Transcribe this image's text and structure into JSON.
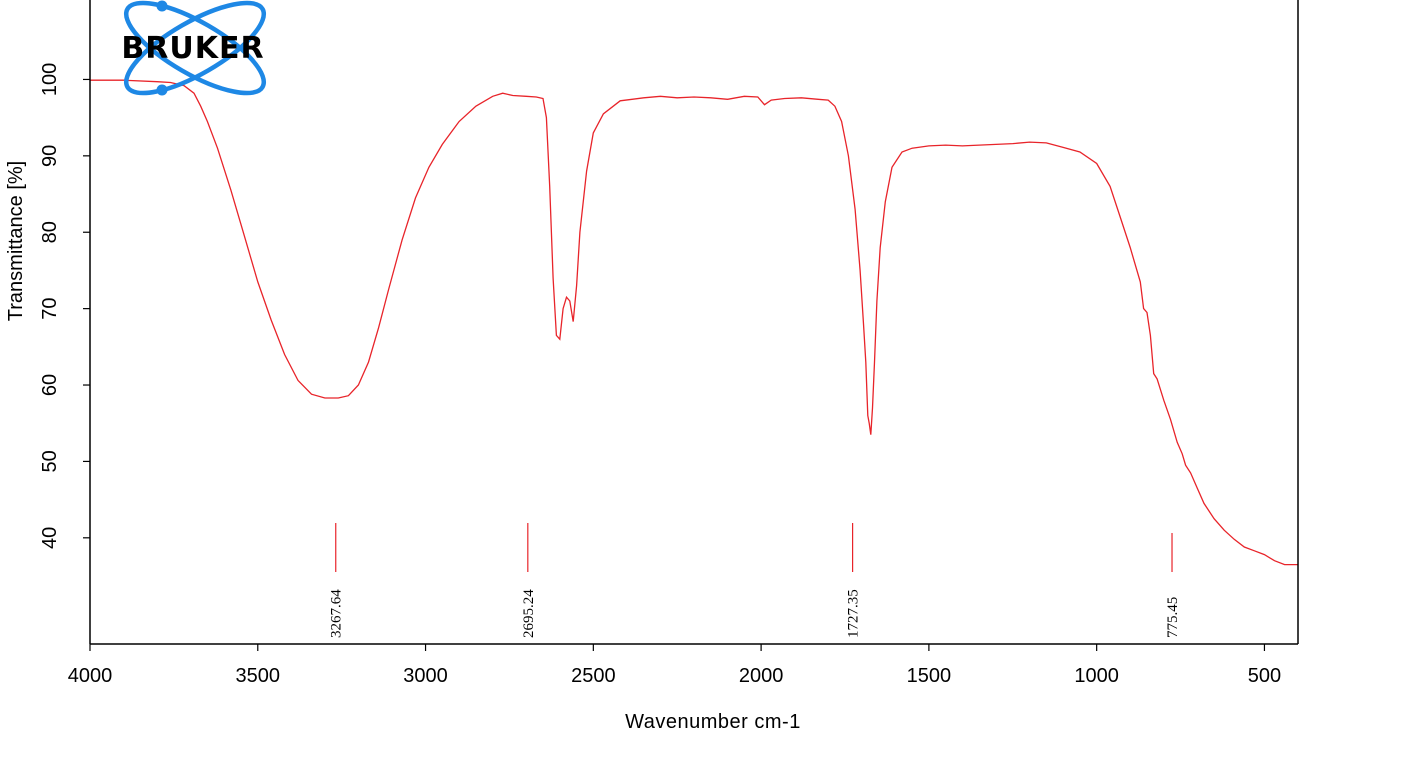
{
  "logo": {
    "text": "BRUKER",
    "color": "#1e88e5"
  },
  "colors": {
    "spectrum": "#e8242a",
    "axis": "#000000",
    "peak_marker": "#e8242a"
  },
  "chart_data": {
    "type": "line",
    "title": "",
    "xlabel": "Wavenumber cm-1",
    "ylabel": "Transmittance [%]",
    "xlim": [
      4000,
      400
    ],
    "ylim": [
      26.1,
      110.4
    ],
    "x_reversed": true,
    "x_ticks": [
      4000,
      3500,
      3000,
      2500,
      2000,
      1500,
      1000,
      500
    ],
    "y_ticks": [
      40,
      50,
      60,
      70,
      80,
      90,
      100
    ],
    "grid": false,
    "legend": "none",
    "series": [
      {
        "points": [
          [
            4000,
            99.9
          ],
          [
            3900,
            99.9
          ],
          [
            3800,
            99.7
          ],
          [
            3760,
            99.6
          ],
          [
            3720,
            99.2
          ],
          [
            3690,
            98.2
          ],
          [
            3670,
            96.5
          ],
          [
            3650,
            94.5
          ],
          [
            3620,
            91.0
          ],
          [
            3580,
            85.5
          ],
          [
            3540,
            79.5
          ],
          [
            3500,
            73.5
          ],
          [
            3460,
            68.5
          ],
          [
            3420,
            64.0
          ],
          [
            3380,
            60.6
          ],
          [
            3340,
            58.8
          ],
          [
            3300,
            58.3
          ],
          [
            3260,
            58.3
          ],
          [
            3230,
            58.6
          ],
          [
            3200,
            60.0
          ],
          [
            3170,
            63.0
          ],
          [
            3140,
            67.5
          ],
          [
            3110,
            72.5
          ],
          [
            3070,
            79.0
          ],
          [
            3030,
            84.5
          ],
          [
            2990,
            88.5
          ],
          [
            2950,
            91.5
          ],
          [
            2900,
            94.5
          ],
          [
            2850,
            96.5
          ],
          [
            2800,
            97.8
          ],
          [
            2770,
            98.2
          ],
          [
            2740,
            97.9
          ],
          [
            2700,
            97.8
          ],
          [
            2670,
            97.7
          ],
          [
            2650,
            97.5
          ],
          [
            2640,
            95.0
          ],
          [
            2630,
            86.0
          ],
          [
            2620,
            74.0
          ],
          [
            2610,
            66.5
          ],
          [
            2600,
            66.0
          ],
          [
            2590,
            70.0
          ],
          [
            2580,
            71.5
          ],
          [
            2570,
            71.0
          ],
          [
            2560,
            68.3
          ],
          [
            2550,
            73.0
          ],
          [
            2540,
            80.0
          ],
          [
            2520,
            88.0
          ],
          [
            2500,
            93.0
          ],
          [
            2470,
            95.5
          ],
          [
            2420,
            97.2
          ],
          [
            2350,
            97.6
          ],
          [
            2300,
            97.8
          ],
          [
            2250,
            97.6
          ],
          [
            2200,
            97.7
          ],
          [
            2150,
            97.6
          ],
          [
            2100,
            97.4
          ],
          [
            2050,
            97.8
          ],
          [
            2010,
            97.7
          ],
          [
            1990,
            96.7
          ],
          [
            1970,
            97.3
          ],
          [
            1930,
            97.5
          ],
          [
            1880,
            97.6
          ],
          [
            1830,
            97.4
          ],
          [
            1800,
            97.3
          ],
          [
            1780,
            96.5
          ],
          [
            1760,
            94.5
          ],
          [
            1740,
            90.0
          ],
          [
            1720,
            83.0
          ],
          [
            1705,
            75.0
          ],
          [
            1695,
            68.0
          ],
          [
            1688,
            63.0
          ],
          [
            1682,
            56.0
          ],
          [
            1678,
            55.0
          ],
          [
            1673,
            53.5
          ],
          [
            1668,
            57.0
          ],
          [
            1662,
            63.0
          ],
          [
            1655,
            71.0
          ],
          [
            1645,
            78.0
          ],
          [
            1630,
            84.0
          ],
          [
            1610,
            88.5
          ],
          [
            1580,
            90.5
          ],
          [
            1550,
            91.0
          ],
          [
            1500,
            91.3
          ],
          [
            1450,
            91.4
          ],
          [
            1400,
            91.3
          ],
          [
            1350,
            91.4
          ],
          [
            1300,
            91.5
          ],
          [
            1250,
            91.6
          ],
          [
            1200,
            91.8
          ],
          [
            1150,
            91.7
          ],
          [
            1100,
            91.1
          ],
          [
            1050,
            90.5
          ],
          [
            1000,
            89.0
          ],
          [
            960,
            86.0
          ],
          [
            930,
            82.0
          ],
          [
            900,
            78.0
          ],
          [
            870,
            73.5
          ],
          [
            860,
            70.0
          ],
          [
            850,
            69.5
          ],
          [
            840,
            66.5
          ],
          [
            830,
            61.5
          ],
          [
            820,
            60.8
          ],
          [
            800,
            58.0
          ],
          [
            780,
            55.5
          ],
          [
            760,
            52.5
          ],
          [
            745,
            51.0
          ],
          [
            735,
            49.5
          ],
          [
            720,
            48.5
          ],
          [
            700,
            46.5
          ],
          [
            680,
            44.5
          ],
          [
            650,
            42.5
          ],
          [
            620,
            41.0
          ],
          [
            590,
            39.8
          ],
          [
            560,
            38.8
          ],
          [
            530,
            38.3
          ],
          [
            500,
            37.8
          ],
          [
            470,
            37.0
          ],
          [
            440,
            36.5
          ],
          [
            410,
            36.5
          ],
          [
            400,
            36.5
          ]
        ]
      }
    ],
    "peak_labels": [
      {
        "x": 3267.64,
        "label": "3267.64"
      },
      {
        "x": 2695.24,
        "label": "2695.24"
      },
      {
        "x": 1727.35,
        "label": "1727.35"
      },
      {
        "x": 775.45,
        "label": "775.45"
      }
    ]
  }
}
